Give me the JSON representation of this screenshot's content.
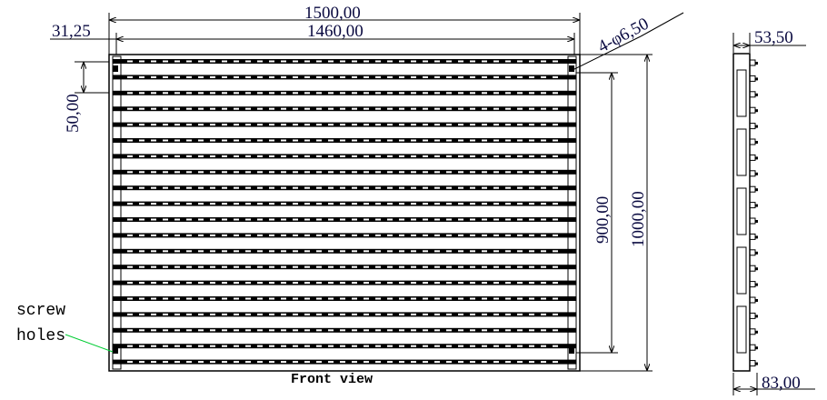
{
  "dimensions": {
    "overall_width": "1500,00",
    "inner_width": "1460,00",
    "edge_offset": "31,25",
    "bar_pitch": "50,00",
    "hole_spacing_vertical": "900,00",
    "overall_height": "1000,00",
    "holes": "4-φ6,50",
    "side_depth": "53,50",
    "side_depth_total": "83,00"
  },
  "labels": {
    "screw_holes_line1": "screw",
    "screw_holes_line2": "holes",
    "front_view": "Front view"
  },
  "colors": {
    "dimension_text": "#0a0a40",
    "leader": "#00cc33",
    "line": "#000000"
  }
}
